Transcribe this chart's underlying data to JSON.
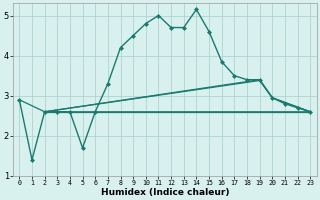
{
  "title": "",
  "xlabel": "Humidex (Indice chaleur)",
  "ylabel": "",
  "xlim": [
    -0.5,
    23.5
  ],
  "ylim": [
    1,
    5.3
  ],
  "xticks": [
    0,
    1,
    2,
    3,
    4,
    5,
    6,
    7,
    8,
    9,
    10,
    11,
    12,
    13,
    14,
    15,
    16,
    17,
    18,
    19,
    20,
    21,
    22,
    23
  ],
  "yticks": [
    1,
    2,
    3,
    4,
    5
  ],
  "bg_color": "#d8f0ee",
  "grid_color": "#b0d4d0",
  "line_color": "#1a7a6e",
  "lines": [
    {
      "x": [
        0,
        1,
        2,
        3,
        4,
        5,
        6,
        7,
        8,
        9,
        10,
        11,
        12,
        13,
        14,
        15,
        16,
        17,
        18,
        19,
        20,
        21,
        22,
        23
      ],
      "y": [
        2.9,
        1.4,
        2.6,
        2.6,
        2.6,
        1.7,
        2.6,
        3.3,
        4.2,
        4.5,
        4.8,
        5.0,
        4.7,
        4.7,
        5.15,
        4.6,
        3.85,
        3.5,
        3.4,
        3.4,
        2.95,
        2.8,
        2.7,
        2.6
      ],
      "marker": "D",
      "markersize": 2.0,
      "linewidth": 1.0
    },
    {
      "x": [
        0,
        2,
        23
      ],
      "y": [
        2.9,
        2.6,
        2.6
      ],
      "marker": null,
      "markersize": 0,
      "linewidth": 0.9
    },
    {
      "x": [
        2,
        23
      ],
      "y": [
        2.6,
        2.6
      ],
      "marker": null,
      "markersize": 0,
      "linewidth": 0.9
    },
    {
      "x": [
        2,
        19,
        20,
        23
      ],
      "y": [
        2.6,
        3.4,
        2.95,
        2.6
      ],
      "marker": null,
      "markersize": 0,
      "linewidth": 0.9
    },
    {
      "x": [
        2,
        19,
        20,
        23
      ],
      "y": [
        2.6,
        3.38,
        2.95,
        2.6
      ],
      "marker": null,
      "markersize": 0,
      "linewidth": 0.9
    }
  ]
}
